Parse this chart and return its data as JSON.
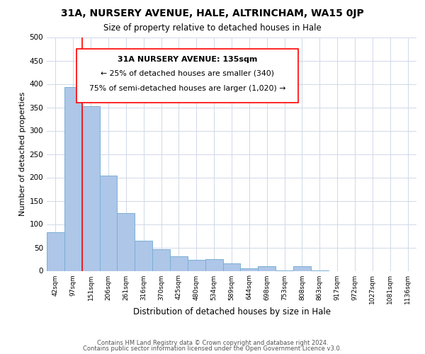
{
  "title_main": "31A, NURSERY AVENUE, HALE, ALTRINCHAM, WA15 0JP",
  "title_sub": "Size of property relative to detached houses in Hale",
  "xlabel": "Distribution of detached houses by size in Hale",
  "ylabel": "Number of detached properties",
  "categories": [
    "42sqm",
    "97sqm",
    "151sqm",
    "206sqm",
    "261sqm",
    "316sqm",
    "370sqm",
    "425sqm",
    "480sqm",
    "534sqm",
    "589sqm",
    "644sqm",
    "698sqm",
    "753sqm",
    "808sqm",
    "863sqm",
    "917sqm",
    "972sqm",
    "1027sqm",
    "1081sqm",
    "1136sqm"
  ],
  "values": [
    82,
    393,
    352,
    204,
    123,
    64,
    46,
    31,
    24,
    25,
    16,
    6,
    10,
    1,
    10,
    1,
    0,
    0,
    0,
    0,
    0
  ],
  "bar_color": "#aec6e8",
  "bar_edge_color": "#7bafd4",
  "red_line_x": 1.5,
  "annotation_line1": "31A NURSERY AVENUE: 135sqm",
  "annotation_line2": "← 25% of detached houses are smaller (340)",
  "annotation_line3": "75% of semi-detached houses are larger (1,020) →",
  "footer_line1": "Contains HM Land Registry data © Crown copyright and database right 2024.",
  "footer_line2": "Contains public sector information licensed under the Open Government Licence v3.0.",
  "ylim": [
    0,
    500
  ],
  "yticks": [
    0,
    50,
    100,
    150,
    200,
    250,
    300,
    350,
    400,
    450,
    500
  ],
  "background_color": "#ffffff",
  "grid_color": "#d0d8e8"
}
